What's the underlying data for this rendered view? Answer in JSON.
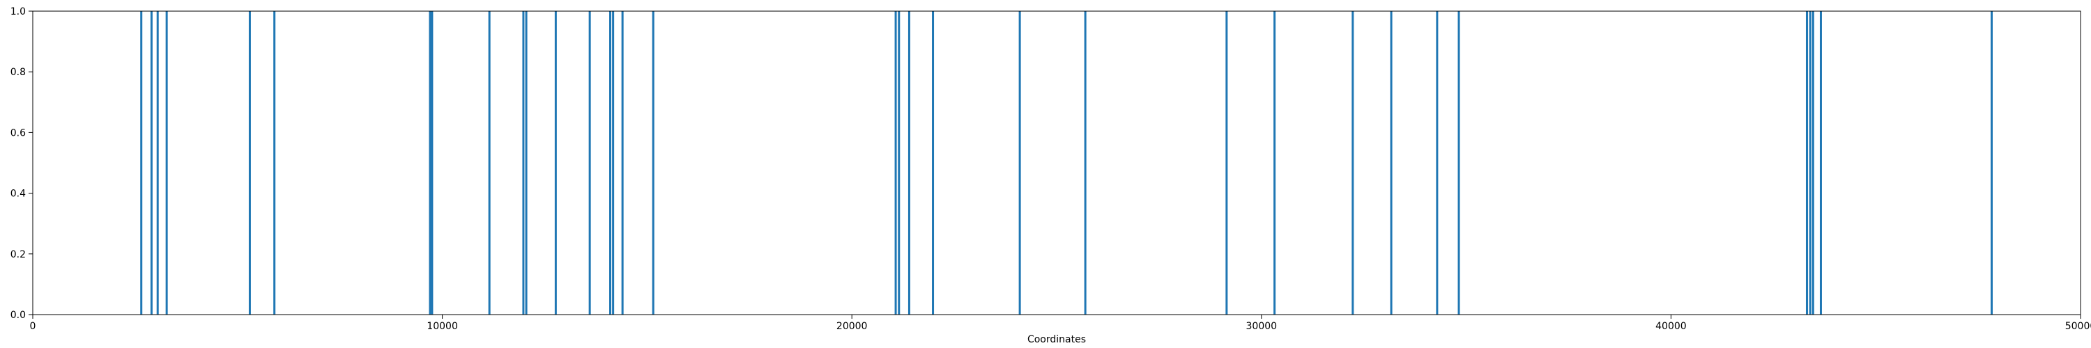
{
  "chart_data": {
    "type": "bar",
    "title": "",
    "xlabel": "Coordinates",
    "ylabel": "",
    "xlim": [
      0,
      50000
    ],
    "ylim": [
      0,
      1.0
    ],
    "xticks": [
      0,
      10000,
      20000,
      30000,
      40000,
      50000
    ],
    "xtick_labels": [
      "0",
      "10000",
      "20000",
      "30000",
      "40000",
      "50000"
    ],
    "yticks": [
      0.0,
      0.2,
      0.4,
      0.6,
      0.8,
      1.0
    ],
    "ytick_labels": [
      "0.0",
      "0.2",
      "0.4",
      "0.6",
      "0.8",
      "1.0"
    ],
    "grid": false,
    "bar_color": "#1f77b4",
    "series": [
      {
        "x": [
          2650,
          2900,
          3050,
          3270,
          5300,
          5900,
          9700,
          9750,
          11150,
          11980,
          12050,
          12770,
          13600,
          14100,
          14170,
          14400,
          15150,
          21070,
          21150,
          21400,
          21980,
          24100,
          25700,
          29150,
          30320,
          32230,
          33170,
          34290,
          34820,
          43320,
          43400,
          43470,
          43660,
          47830
        ],
        "values": [
          1,
          1,
          1,
          1,
          1,
          1,
          1,
          1,
          1,
          1,
          1,
          1,
          1,
          1,
          1,
          1,
          1,
          1,
          1,
          1,
          1,
          1,
          1,
          1,
          1,
          1,
          1,
          1,
          1,
          1,
          1,
          1,
          1,
          1
        ]
      }
    ]
  }
}
